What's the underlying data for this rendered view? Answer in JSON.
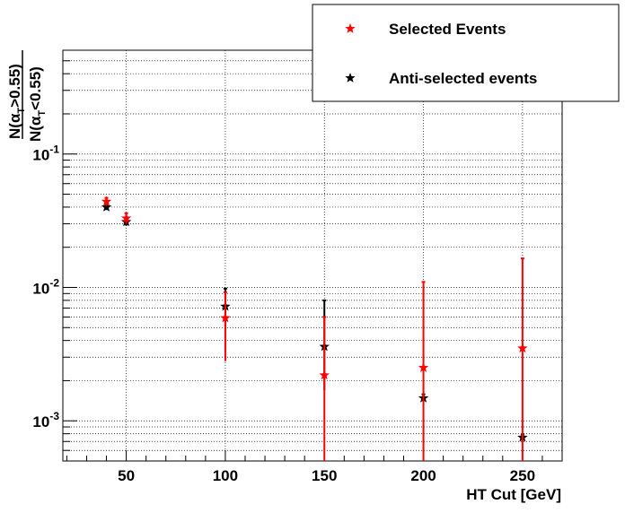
{
  "chart_data": {
    "type": "scatter",
    "title": "",
    "xlabel": "HT Cut [GeV]",
    "ylabel": {
      "numerator": {
        "prefix": "N(",
        "greek": "α",
        "sub": "T",
        "suffix": ">0.55)"
      },
      "denominator": {
        "prefix": "N(",
        "greek": "α",
        "sub": "T",
        "suffix": "<0.55)"
      }
    },
    "xlim": [
      18,
      270
    ],
    "ylim": [
      0.0005,
      0.6
    ],
    "yscale": "log",
    "grid": true,
    "legend_position": "top-right",
    "x_ticks": [
      50,
      100,
      150,
      200,
      250
    ],
    "x_tick_labels": [
      "50",
      "100",
      "150",
      "200",
      "250"
    ],
    "y_ticks": [
      {
        "value": 0.001,
        "base": "10",
        "exp": "-3"
      },
      {
        "value": 0.01,
        "base": "10",
        "exp": "-2"
      },
      {
        "value": 0.1,
        "base": "10",
        "exp": "-1"
      }
    ],
    "series": [
      {
        "name": "Selected Events",
        "color": "#ff0000",
        "marker": "star",
        "points": [
          {
            "x": 40,
            "y": 0.044,
            "ylo": 0.041,
            "yhi": 0.047
          },
          {
            "x": 50,
            "y": 0.033,
            "ylo": 0.03,
            "yhi": 0.036
          },
          {
            "x": 100,
            "y": 0.0059,
            "ylo": 0.0028,
            "yhi": 0.0092
          },
          {
            "x": 150,
            "y": 0.0022,
            "ylo": 0.0005,
            "yhi": 0.006
          },
          {
            "x": 200,
            "y": 0.0025,
            "ylo": 0.0005,
            "yhi": 0.011
          },
          {
            "x": 250,
            "y": 0.0035,
            "ylo": 0.0005,
            "yhi": 0.0165
          }
        ]
      },
      {
        "name": "Anti-selected events",
        "color": "#000000",
        "marker": "star",
        "points": [
          {
            "x": 40,
            "y": 0.04,
            "ylo": 0.038,
            "yhi": 0.042
          },
          {
            "x": 50,
            "y": 0.031,
            "ylo": 0.029,
            "yhi": 0.033
          },
          {
            "x": 100,
            "y": 0.0072,
            "ylo": 0.0048,
            "yhi": 0.0098
          },
          {
            "x": 150,
            "y": 0.0036,
            "ylo": 0.0017,
            "yhi": 0.008
          },
          {
            "x": 200,
            "y": 0.00148,
            "ylo": 0.00138,
            "yhi": 0.00158
          },
          {
            "x": 250,
            "y": 0.00075,
            "ylo": 0.00071,
            "yhi": 0.00079
          }
        ]
      }
    ]
  }
}
